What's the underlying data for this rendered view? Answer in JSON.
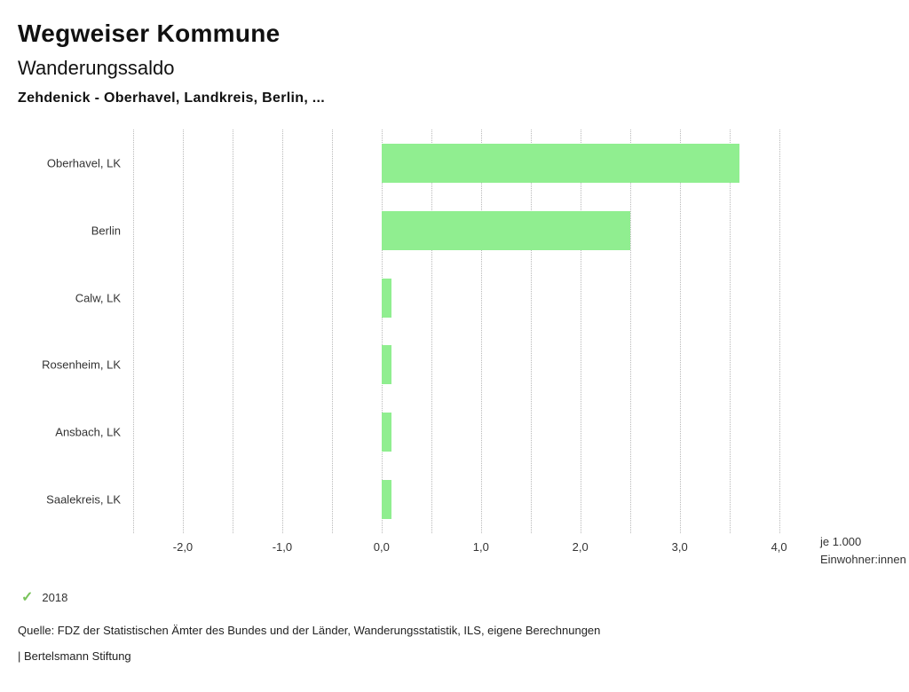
{
  "header": {
    "title": "Wegweiser Kommune",
    "subtitle": "Wanderungssaldo",
    "region_line": "Zehdenick - Oberhavel, Landkreis, Berlin, ..."
  },
  "chart_data": {
    "type": "bar",
    "orientation": "horizontal",
    "title": "Wanderungssaldo",
    "categories": [
      "Oberhavel, LK",
      "Berlin",
      "Calw, LK",
      "Rosenheim, LK",
      "Ansbach, LK",
      "Saalekreis, LK"
    ],
    "values": [
      3.6,
      2.5,
      0.1,
      0.1,
      0.1,
      0.1
    ],
    "series_name": "2018",
    "bar_color": "#90ee90",
    "xlim": [
      -2.5,
      4.2
    ],
    "xticks": [
      -2.0,
      -1.0,
      0.0,
      1.0,
      2.0,
      3.0,
      4.0
    ],
    "xtick_labels": [
      "-2,0",
      "-1,0",
      "0,0",
      "1,0",
      "2,0",
      "3,0",
      "4,0"
    ],
    "gridline_step": 0.5,
    "grid": "dotted-vertical",
    "legend_position": "bottom-left",
    "xlabel_line1": "je 1.000",
    "xlabel_line2": "Einwohner:innen"
  },
  "legend": {
    "year": "2018",
    "check_color": "#79c35b"
  },
  "footer": {
    "source": "Quelle: FDZ der Statistischen Ämter des Bundes und der Länder, Wanderungsstatistik, ILS, eigene Berechnungen",
    "brand": "| Bertelsmann Stiftung"
  }
}
